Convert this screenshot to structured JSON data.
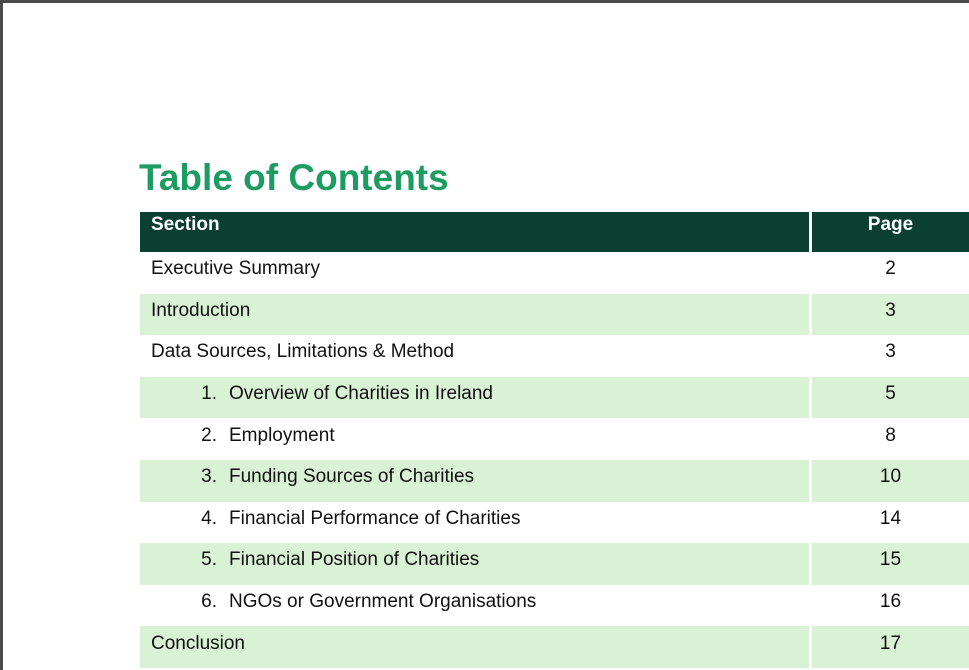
{
  "document": {
    "title": "Table of Contents"
  },
  "toc": {
    "header": {
      "section": "Section",
      "page": "Page"
    },
    "rows": [
      {
        "number": "",
        "label": "Executive Summary",
        "page": "2"
      },
      {
        "number": "",
        "label": "Introduction",
        "page": "3"
      },
      {
        "number": "",
        "label": "Data Sources, Limitations & Method",
        "page": "3"
      },
      {
        "number": "1.",
        "label": "Overview of Charities in Ireland",
        "page": "5"
      },
      {
        "number": "2.",
        "label": "Employment",
        "page": "8"
      },
      {
        "number": "3.",
        "label": "Funding Sources of Charities",
        "page": "10"
      },
      {
        "number": "4.",
        "label": "Financial Performance of Charities",
        "page": "14"
      },
      {
        "number": "5.",
        "label": "Financial Position of Charities",
        "page": "15"
      },
      {
        "number": "6.",
        "label": "NGOs or Government Organisations",
        "page": "16"
      },
      {
        "number": "",
        "label": "Conclusion",
        "page": "17"
      }
    ]
  },
  "colors": {
    "title": "#1c9c63",
    "header_background": "#0b3f30",
    "header_text": "#ffffff",
    "shaded_row": "#d9f1d4",
    "plain_row": "#ffffff"
  }
}
